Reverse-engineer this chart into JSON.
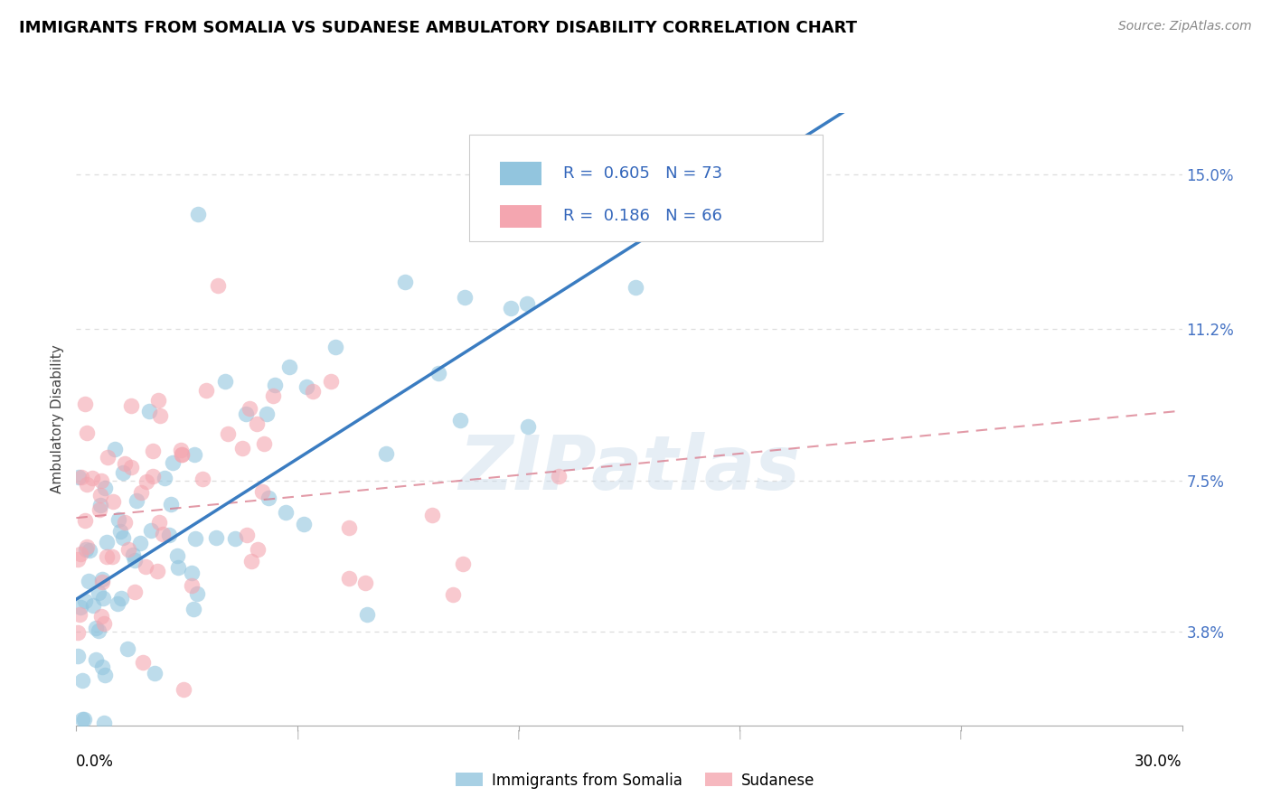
{
  "title": "IMMIGRANTS FROM SOMALIA VS SUDANESE AMBULATORY DISABILITY CORRELATION CHART",
  "source": "Source: ZipAtlas.com",
  "ylabel": "Ambulatory Disability",
  "ytick_values": [
    3.8,
    7.5,
    11.2,
    15.0
  ],
  "xlim": [
    0.0,
    30.0
  ],
  "ylim": [
    0.0,
    16.5
  ],
  "ylim_display_min": 1.5,
  "legend_somalia_r": "0.605",
  "legend_somalia_n": "73",
  "legend_sudanese_r": "0.186",
  "legend_sudanese_n": "66",
  "somalia_color": "#92c5de",
  "sudanese_color": "#f4a6b0",
  "somalia_line_color": "#3a7cc1",
  "sudanese_line_color": "#d9788a",
  "background_color": "#ffffff",
  "grid_color": "#dddddd",
  "watermark": "ZIPatlas",
  "title_fontsize": 13,
  "source_fontsize": 10,
  "tick_fontsize": 12,
  "ylabel_fontsize": 11
}
